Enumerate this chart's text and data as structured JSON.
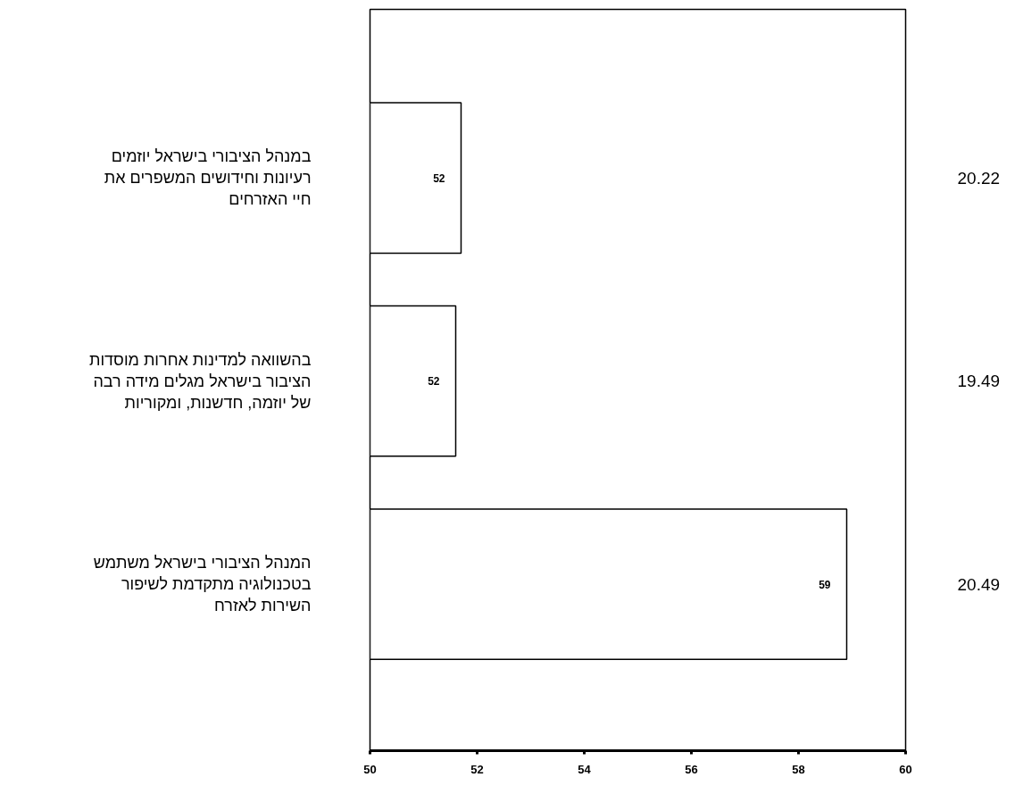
{
  "chart_data": {
    "type": "bar",
    "orientation": "horizontal",
    "categories": [
      "במנהל הציבורי בישראל יוזמים רעיונות וחידושים המשפרים את חיי האזרחים",
      "בהשוואה למדינות אחרות מוסדות הציבור בישראל מגלים מידה רבה של יוזמה, חדשנות, ומקוריות",
      "המנהל הציבורי בישראל משתמש בטכנולוגיה מתקדמת לשיפור השירות לאזרח"
    ],
    "values": [
      51.7,
      51.6,
      58.9
    ],
    "value_labels": [
      "52",
      "52",
      "59"
    ],
    "color": "#ffffff",
    "xlim": [
      50,
      60
    ],
    "xticks": [
      50,
      52,
      54,
      56,
      58,
      60
    ],
    "grid": false,
    "legend": false,
    "annotations": [
      "20.22",
      "19.49",
      "20.49"
    ]
  }
}
